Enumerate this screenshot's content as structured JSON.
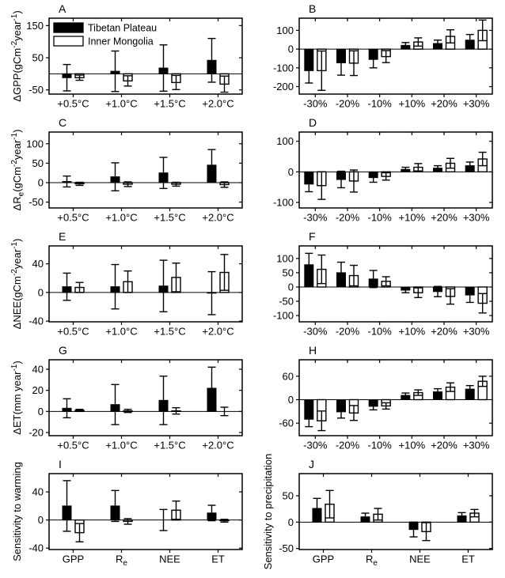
{
  "figure": {
    "background": "#ffffff",
    "foreground": "#000000",
    "legend": {
      "panel": "A",
      "items": [
        {
          "label": "Tibetan Plateau",
          "fill": "#000000"
        },
        {
          "label": "Inner Mongolia",
          "fill": "#ffffff"
        }
      ]
    }
  },
  "chart_data": [
    {
      "type": "bar",
      "panel": "A",
      "legend": true,
      "ylabel_text": "ΔGPP(gCm⁻²year⁻¹)",
      "ylabel_runs": [
        [
          "ΔGPP(gCm",
          0
        ],
        [
          "-2",
          1
        ],
        [
          "year",
          0
        ],
        [
          "-1",
          1
        ],
        [
          ")",
          0
        ]
      ],
      "yticks": [
        150,
        50,
        -50
      ],
      "ylim": [
        -63,
        173
      ],
      "categories": [
        "+0.5°C",
        "+1.0°C",
        "+1.5°C",
        "+2.0°C"
      ],
      "series": [
        {
          "name": "Tibetan Plateau",
          "values": [
            -12,
            8,
            18,
            42
          ],
          "errors": [
            41,
            63,
            72,
            68
          ]
        },
        {
          "name": "Inner Mongolia",
          "values": [
            -12,
            -22,
            -27,
            -32
          ],
          "errors": [
            8,
            16,
            22,
            25
          ]
        }
      ]
    },
    {
      "type": "bar",
      "panel": "B",
      "legend": false,
      "ylabel_text": "",
      "ylabel_runs": [],
      "yticks": [
        100,
        0,
        -100,
        -200
      ],
      "ylim": [
        -240,
        165
      ],
      "categories": [
        "-30%",
        "-20%",
        "-10%",
        "+10%",
        "+20%",
        "+30%"
      ],
      "series": [
        {
          "name": "Tibetan Plateau",
          "values": [
            -115,
            -73,
            -55,
            20,
            30,
            48
          ],
          "errors": [
            66,
            66,
            45,
            15,
            18,
            30
          ]
        },
        {
          "name": "Inner Mongolia",
          "values": [
            -115,
            -75,
            -40,
            38,
            68,
            100
          ],
          "errors": [
            105,
            66,
            32,
            22,
            35,
            55
          ]
        }
      ]
    },
    {
      "type": "bar",
      "panel": "C",
      "legend": false,
      "ylabel_text": "ΔRe(gCm⁻²year⁻¹)",
      "ylabel_runs": [
        [
          "ΔR",
          0
        ],
        [
          "e",
          2
        ],
        [
          "(gCm",
          0
        ],
        [
          "-2",
          1
        ],
        [
          "year",
          0
        ],
        [
          "-1",
          1
        ],
        [
          ")",
          0
        ]
      ],
      "yticks": [
        100,
        50,
        0,
        -50
      ],
      "ylim": [
        -65,
        130
      ],
      "categories": [
        "+0.5°C",
        "+1.0°C",
        "+1.5°C",
        "+2.0°C"
      ],
      "series": [
        {
          "name": "Tibetan Plateau",
          "values": [
            3,
            15,
            25,
            45
          ],
          "errors": [
            14,
            36,
            40,
            40
          ]
        },
        {
          "name": "Inner Mongolia",
          "values": [
            -3,
            -4,
            -4,
            -5
          ],
          "errors": [
            4,
            6,
            5,
            7
          ]
        }
      ]
    },
    {
      "type": "bar",
      "panel": "D",
      "legend": false,
      "ylabel_text": "",
      "ylabel_runs": [],
      "yticks": [
        100,
        0,
        -100
      ],
      "ylim": [
        -118,
        130
      ],
      "categories": [
        "-30%",
        "-20%",
        "-10%",
        "+10%",
        "+20%",
        "+30%"
      ],
      "series": [
        {
          "name": "Tibetan Plateau",
          "values": [
            -40,
            -25,
            -19,
            8,
            12,
            20
          ],
          "errors": [
            25,
            27,
            15,
            7,
            8,
            12
          ]
        },
        {
          "name": "Inner Mongolia",
          "values": [
            -45,
            -30,
            -15,
            15,
            28,
            42
          ],
          "errors": [
            45,
            36,
            12,
            12,
            16,
            22
          ]
        }
      ]
    },
    {
      "type": "bar",
      "panel": "E",
      "legend": false,
      "ylabel_text": "ΔNEE(gCm⁻²year⁻¹)",
      "ylabel_runs": [
        [
          "ΔNEE(gCm",
          0
        ],
        [
          "-2",
          1
        ],
        [
          "year",
          0
        ],
        [
          "-1",
          1
        ],
        [
          ")",
          0
        ]
      ],
      "yticks": [
        40,
        0,
        -40
      ],
      "ylim": [
        -41,
        65
      ],
      "categories": [
        "+0.5°C",
        "+1.0°C",
        "+1.5°C",
        "+2.0°C"
      ],
      "series": [
        {
          "name": "Tibetan Plateau",
          "values": [
            8,
            8,
            9,
            -1
          ],
          "errors": [
            19,
            31,
            36,
            30
          ]
        },
        {
          "name": "Inner Mongolia",
          "values": [
            7,
            15,
            21,
            28
          ],
          "errors": [
            7,
            15,
            20,
            25
          ]
        }
      ]
    },
    {
      "type": "bar",
      "panel": "F",
      "legend": false,
      "ylabel_text": "",
      "ylabel_runs": [],
      "yticks": [
        100,
        50,
        0,
        -50,
        -100
      ],
      "ylim": [
        -122,
        144
      ],
      "categories": [
        "-30%",
        "-20%",
        "-10%",
        "+10%",
        "+20%",
        "+30%"
      ],
      "series": [
        {
          "name": "Tibetan Plateau",
          "values": [
            78,
            50,
            28,
            -11,
            -16,
            -28
          ],
          "errors": [
            40,
            37,
            30,
            9,
            18,
            26
          ]
        },
        {
          "name": "Inner Mongolia",
          "values": [
            62,
            40,
            20,
            -20,
            -33,
            -57
          ],
          "errors": [
            50,
            36,
            16,
            17,
            27,
            34
          ]
        }
      ]
    },
    {
      "type": "bar",
      "panel": "G",
      "legend": false,
      "ylabel_text": "ΔET(mm year⁻¹)",
      "ylabel_runs": [
        [
          "ΔET(mm year",
          0
        ],
        [
          "-1",
          1
        ],
        [
          ")",
          0
        ]
      ],
      "yticks": [
        40,
        20,
        0,
        -20
      ],
      "ylim": [
        -23,
        49
      ],
      "categories": [
        "+0.5°C",
        "+1.0°C",
        "+1.5°C",
        "+2.0°C"
      ],
      "series": [
        {
          "name": "Tibetan Plateau",
          "values": [
            3,
            6.5,
            10.5,
            22
          ],
          "errors": [
            9,
            19,
            23,
            20
          ]
        },
        {
          "name": "Inner Mongolia",
          "values": [
            1,
            0.5,
            0.5,
            0
          ],
          "errors": [
            1,
            1.5,
            3,
            4
          ]
        }
      ]
    },
    {
      "type": "bar",
      "panel": "H",
      "legend": false,
      "ylabel_text": "",
      "ylabel_runs": [],
      "yticks": [
        60,
        0,
        -60
      ],
      "ylim": [
        -92,
        102
      ],
      "categories": [
        "-30%",
        "-20%",
        "-10%",
        "+10%",
        "+20%",
        "+30%"
      ],
      "series": [
        {
          "name": "Tibetan Plateau",
          "values": [
            -50,
            -31,
            -17,
            11,
            20,
            27
          ],
          "errors": [
            19,
            16,
            9,
            6,
            8,
            9
          ]
        },
        {
          "name": "Inner Mongolia",
          "values": [
            -54,
            -34,
            -16,
            18,
            32,
            47
          ],
          "errors": [
            25,
            19,
            8,
            7,
            11,
            13
          ]
        }
      ]
    },
    {
      "type": "bar",
      "panel": "I",
      "legend": false,
      "ylabel_text": "Sensitivity to warming",
      "ylabel_runs": [
        [
          "Sensitivity to warming",
          0
        ]
      ],
      "yticks": [
        40,
        0,
        -40
      ],
      "ylim": [
        -42,
        66
      ],
      "categories": [
        "GPP",
        [
          "R",
          "e"
        ],
        "NEE",
        "ET"
      ],
      "series": [
        {
          "name": "Tibetan Plateau",
          "values": [
            20,
            20,
            0,
            10
          ],
          "errors": [
            36,
            22,
            15,
            11
          ]
        },
        {
          "name": "Inner Mongolia",
          "values": [
            -18,
            -2,
            14,
            -1
          ],
          "errors": [
            13,
            4,
            13,
            2
          ]
        }
      ]
    },
    {
      "type": "bar",
      "panel": "J",
      "legend": false,
      "ylabel_text": "Sensitivity to precipitation",
      "ylabel_runs": [
        [
          "Sensitivity to precipitation",
          0
        ]
      ],
      "yticks": [
        50,
        0,
        -50
      ],
      "ylim": [
        -52,
        92
      ],
      "categories": [
        "GPP",
        [
          "R",
          "e"
        ],
        "NEE",
        "ET"
      ],
      "series": [
        {
          "name": "Tibetan Plateau",
          "values": [
            26,
            10,
            -14,
            12
          ],
          "errors": [
            19,
            7,
            14,
            6
          ]
        },
        {
          "name": "Inner Mongolia",
          "values": [
            34,
            15,
            -18,
            17
          ],
          "errors": [
            26,
            11,
            17,
            7
          ]
        }
      ]
    }
  ]
}
